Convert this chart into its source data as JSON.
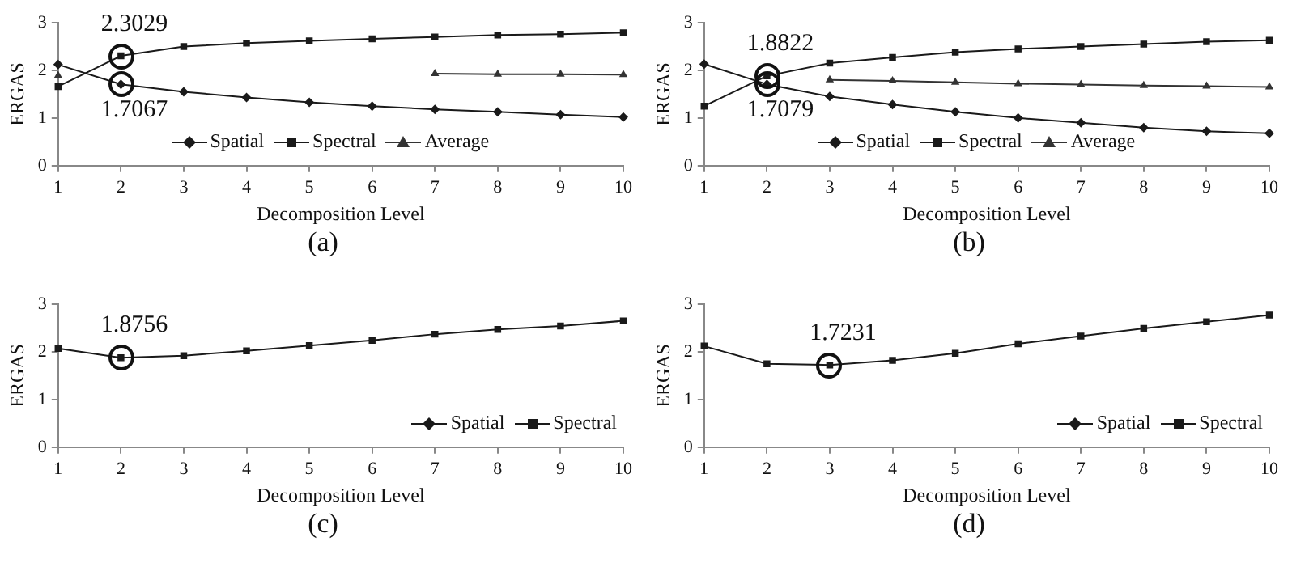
{
  "chart_data": [
    {
      "type": "line",
      "xlabel": "Decomposition Level",
      "ylabel": "ERGAS",
      "categories": [
        "1",
        "2",
        "3",
        "4",
        "5",
        "6",
        "7",
        "8",
        "9",
        "10"
      ],
      "ylim": [
        0,
        3
      ],
      "yticks": [
        0,
        1,
        2,
        3
      ],
      "legend": "bottom",
      "series": [
        {
          "name": "Spatial",
          "color": "#1a1a1a",
          "marker": "diamond",
          "values": [
            2.12,
            1.7067,
            1.55,
            1.43,
            1.33,
            1.25,
            1.18,
            1.13,
            1.07,
            1.02
          ]
        },
        {
          "name": "Spectral",
          "color": "#1a1a1a",
          "marker": "square",
          "values": [
            1.66,
            2.3029,
            2.5,
            2.57,
            2.62,
            2.66,
            2.7,
            2.74,
            2.76,
            2.79
          ]
        },
        {
          "name": "Average",
          "color": "#333333",
          "marker": "triangle",
          "values": [
            1.89,
            null,
            null,
            null,
            null,
            null,
            1.93,
            1.92,
            1.92,
            1.91
          ]
        }
      ],
      "annotations": [
        {
          "text": "2.3029",
          "x": "2",
          "y": 2.3029
        },
        {
          "text": "1.7067",
          "x": "2",
          "y": 1.7067
        },
        "(a)"
      ]
    },
    {
      "type": "line",
      "xlabel": "Decomposition Level",
      "ylabel": "ERGAS",
      "categories": [
        "1",
        "2",
        "3",
        "4",
        "5",
        "6",
        "7",
        "8",
        "9",
        "10"
      ],
      "ylim": [
        0,
        3
      ],
      "yticks": [
        0,
        1,
        2,
        3
      ],
      "legend": "bottom",
      "series": [
        {
          "name": "Spatial",
          "color": "#1a1a1a",
          "marker": "diamond",
          "values": [
            2.13,
            1.7079,
            1.45,
            1.28,
            1.13,
            1.0,
            0.9,
            0.8,
            0.72,
            0.68
          ]
        },
        {
          "name": "Spectral",
          "color": "#1a1a1a",
          "marker": "square",
          "values": [
            1.25,
            1.8822,
            2.15,
            2.27,
            2.38,
            2.45,
            2.5,
            2.55,
            2.6,
            2.63
          ]
        },
        {
          "name": "Average",
          "color": "#333333",
          "marker": "triangle",
          "values": [
            null,
            null,
            1.8,
            1.78,
            1.75,
            1.72,
            1.7,
            1.68,
            1.67,
            1.65
          ]
        }
      ],
      "annotations": [
        {
          "text": "1.8822",
          "x": "2",
          "y": 1.8822
        },
        {
          "text": "1.7079",
          "x": "2",
          "y": 1.7079
        },
        "(b)"
      ]
    },
    {
      "type": "line",
      "xlabel": "Decomposition Level",
      "ylabel": "ERGAS",
      "categories": [
        "1",
        "2",
        "3",
        "4",
        "5",
        "6",
        "7",
        "8",
        "9",
        "10"
      ],
      "ylim": [
        0,
        3
      ],
      "yticks": [
        0,
        1,
        2,
        3
      ],
      "legend": "bottom right",
      "series": [
        {
          "name": "Spatial",
          "color": "#1a1a1a",
          "marker": "diamond",
          "values": [
            null,
            null,
            null,
            null,
            null,
            null,
            null,
            null,
            null,
            null
          ]
        },
        {
          "name": "Spectral",
          "color": "#1a1a1a",
          "marker": "square",
          "values": [
            2.07,
            1.8756,
            1.92,
            2.02,
            2.13,
            2.24,
            2.37,
            2.47,
            2.54,
            2.65
          ]
        }
      ],
      "annotations": [
        {
          "text": "1.8756",
          "x": "2",
          "y": 1.8756
        },
        "(c)"
      ]
    },
    {
      "type": "line",
      "xlabel": "Decomposition Level",
      "ylabel": "ERGAS",
      "categories": [
        "1",
        "2",
        "3",
        "4",
        "5",
        "6",
        "7",
        "8",
        "9",
        "10"
      ],
      "ylim": [
        0,
        3
      ],
      "yticks": [
        0,
        1,
        2,
        3
      ],
      "legend": "bottom right",
      "series": [
        {
          "name": "Spatial",
          "color": "#1a1a1a",
          "marker": "diamond",
          "values": [
            null,
            null,
            null,
            null,
            null,
            null,
            null,
            null,
            null,
            null
          ]
        },
        {
          "name": "Spectral",
          "color": "#1a1a1a",
          "marker": "square",
          "values": [
            2.12,
            1.75,
            1.7231,
            1.82,
            1.97,
            2.17,
            2.33,
            2.49,
            2.63,
            2.77
          ]
        }
      ],
      "annotations": [
        {
          "text": "1.7231",
          "x": "3",
          "y": 1.7231
        },
        "(d)"
      ]
    }
  ]
}
